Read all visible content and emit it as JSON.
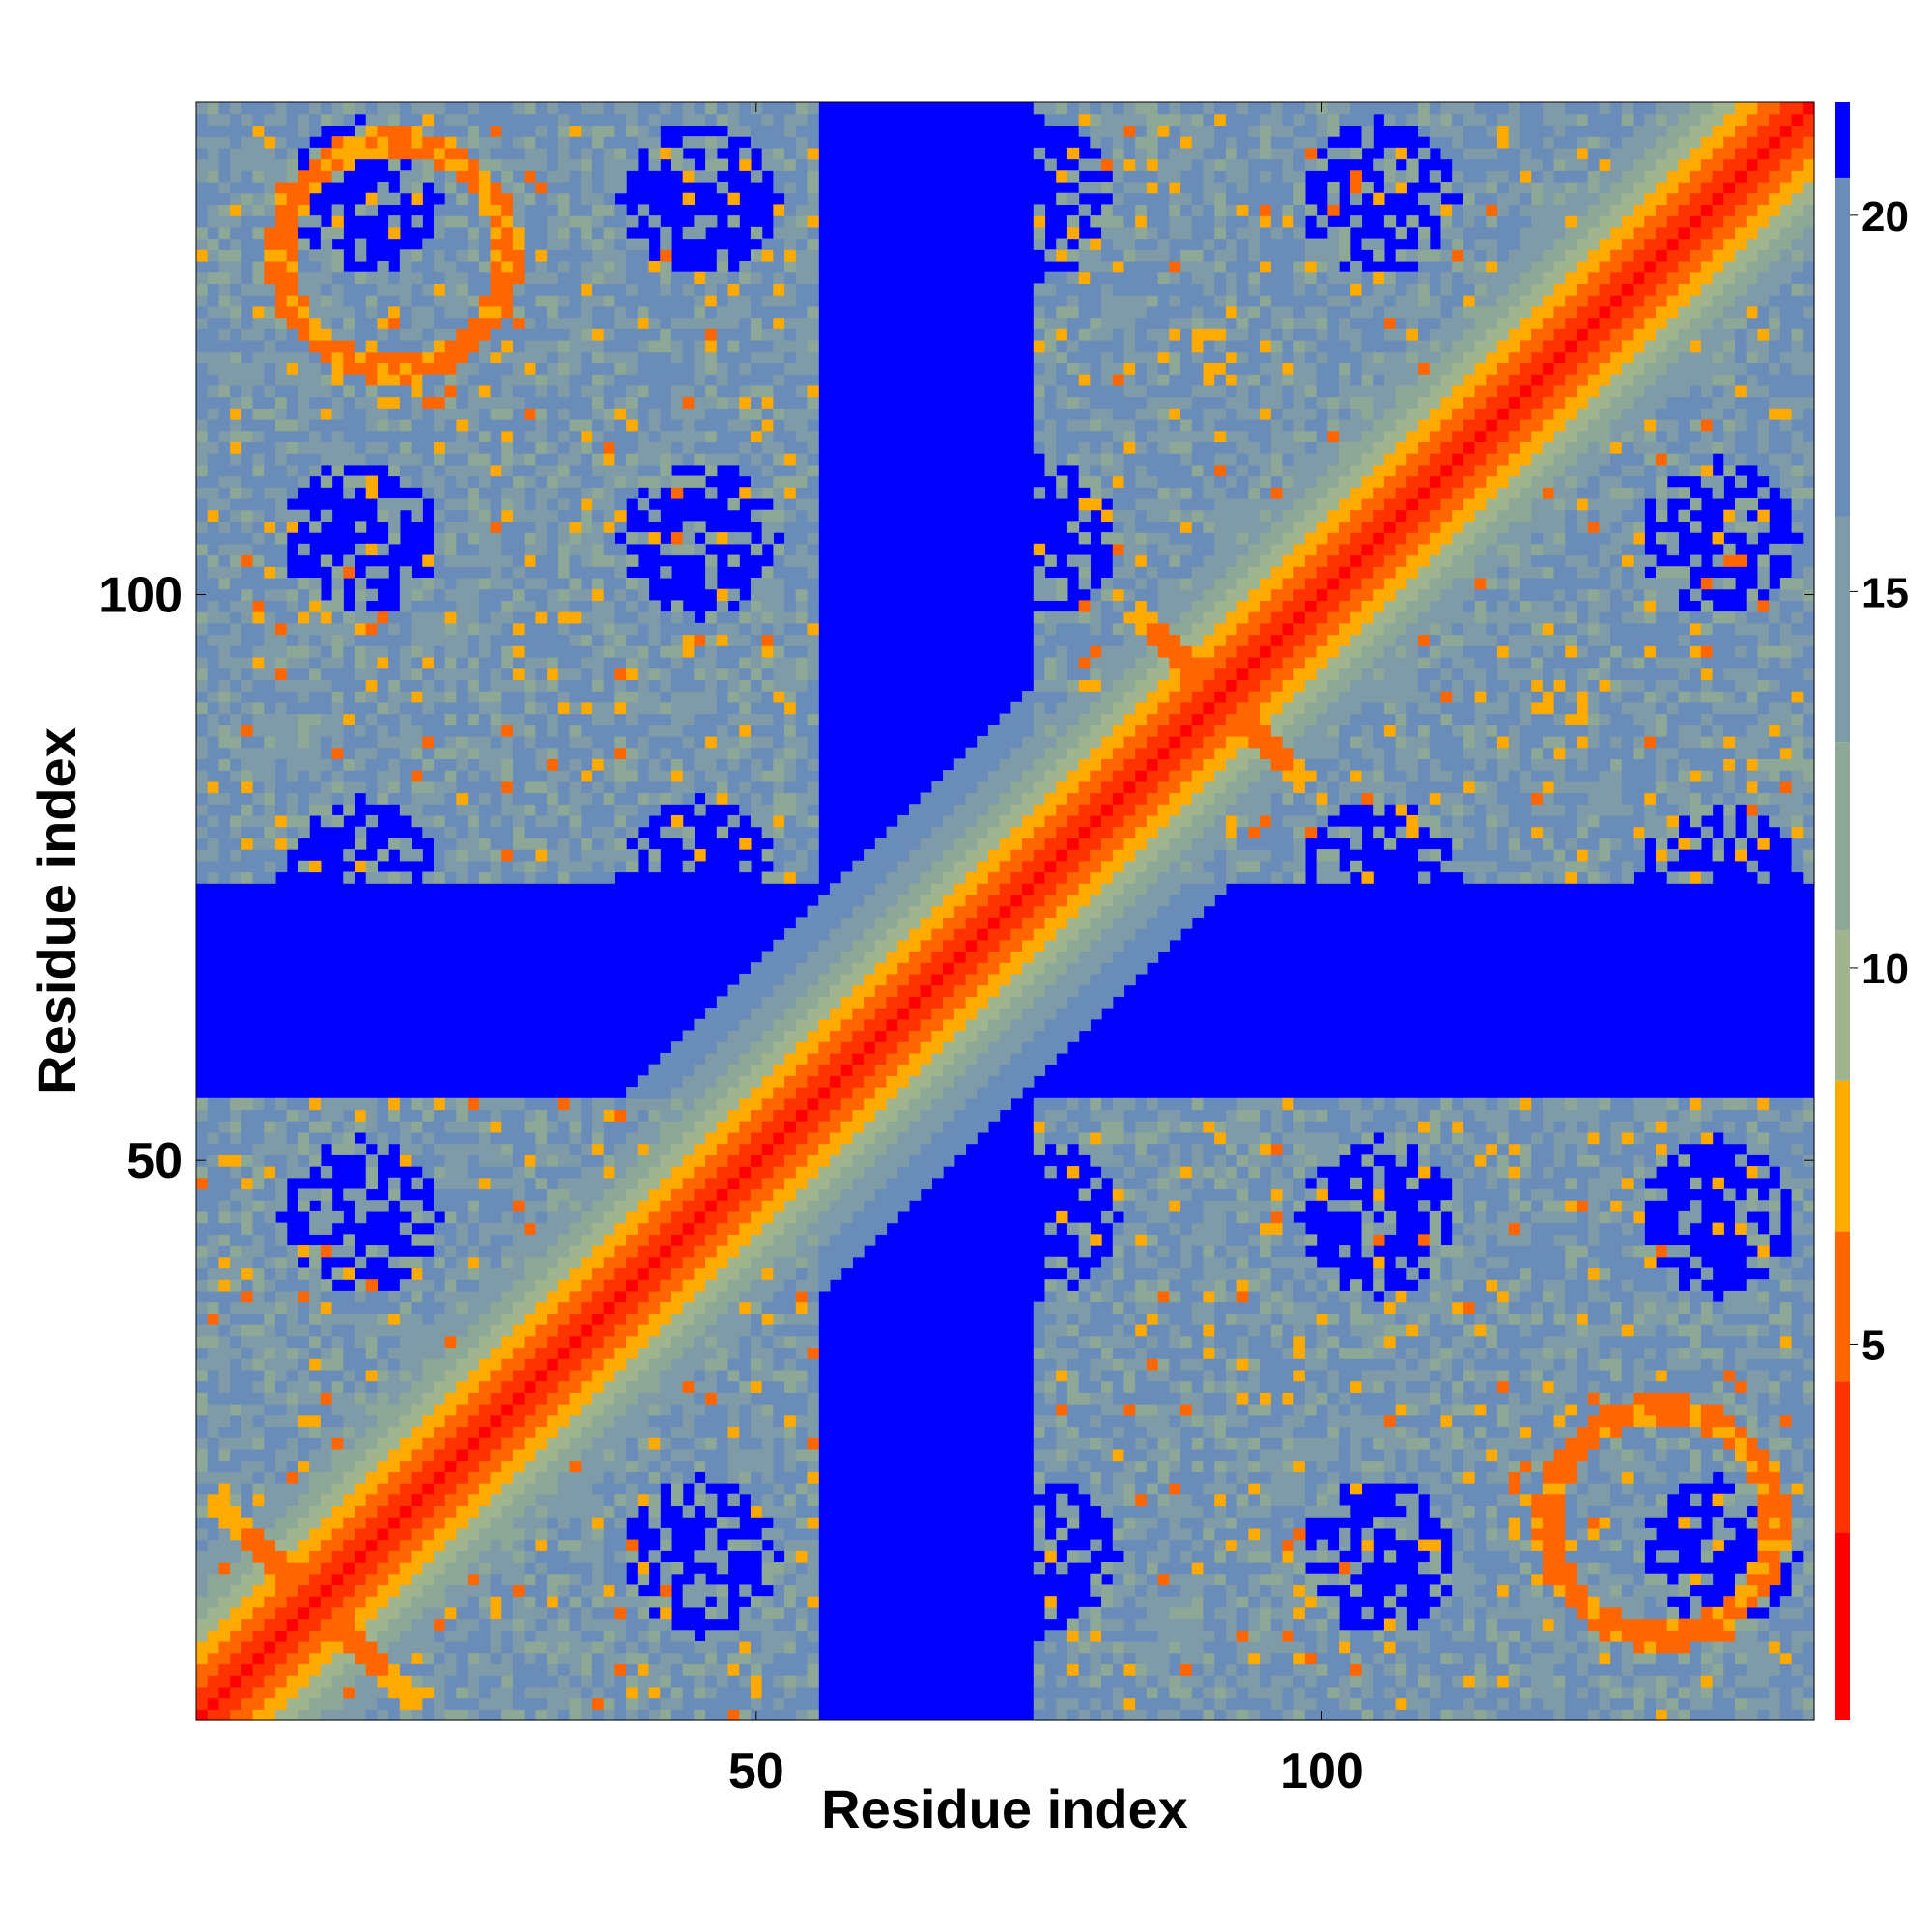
{
  "chart_data": {
    "type": "heatmap",
    "description_kind": "residue-residue distance map",
    "xlabel": "Residue index",
    "ylabel": "Residue index",
    "n_residues": 143,
    "xlim": [
      1,
      143
    ],
    "ylim": [
      1,
      143
    ],
    "x_ticks": [
      50,
      100
    ],
    "y_ticks": [
      50,
      100
    ],
    "colorbar": {
      "range": [
        0,
        21.5
      ],
      "ticks": [
        5,
        10,
        15,
        20
      ],
      "levels": [
        {
          "max": 2.5,
          "color": "#ff0000"
        },
        {
          "max": 4.5,
          "color": "#ff3300"
        },
        {
          "max": 6.5,
          "color": "#ff6600"
        },
        {
          "max": 8.5,
          "color": "#ffaa00"
        },
        {
          "max": 10.5,
          "color": "#9fb48f"
        },
        {
          "max": 13.0,
          "color": "#8ea898"
        },
        {
          "max": 16.0,
          "color": "#7f9ba8"
        },
        {
          "max": 20.5,
          "color": "#6a8cb8"
        },
        {
          "max": 99,
          "color": "#0000ff"
        }
      ]
    },
    "structure": {
      "main_diagonal": "distance near 0 along i = j",
      "anti_diagonal_contacts": [
        {
          "center": [
            91,
            91
          ],
          "extent": 8
        },
        {
          "center": [
            11,
            11
          ],
          "extent": 9
        }
      ],
      "high_density_blocks": [
        {
          "x_range": [
            1,
            55
          ],
          "y_range": [
            75,
            143
          ]
        },
        {
          "x_range": [
            75,
            143
          ],
          "y_range": [
            1,
            55
          ]
        },
        {
          "x_range": [
            75,
            143
          ],
          "y_range": [
            75,
            143
          ]
        },
        {
          "x_range": [
            1,
            55
          ],
          "y_range": [
            1,
            55
          ]
        }
      ]
    }
  }
}
